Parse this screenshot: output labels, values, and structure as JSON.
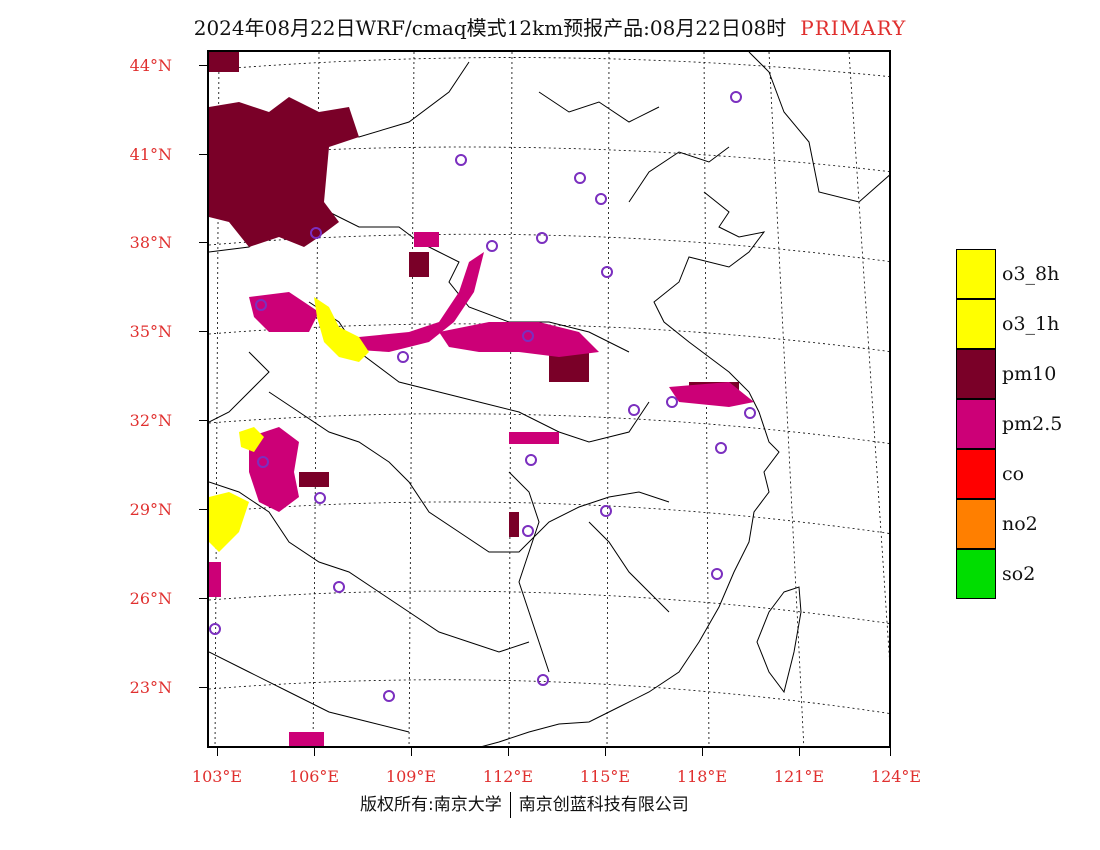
{
  "title": {
    "main": "2024年08月22日WRF/cmaq模式12km预报产品:08月22日08时",
    "tag": "PRIMARY"
  },
  "map": {
    "lat_labels": [
      "44°N",
      "41°N",
      "38°N",
      "35°N",
      "32°N",
      "29°N",
      "26°N",
      "23°N"
    ],
    "lon_labels": [
      "103°E",
      "106°E",
      "109°E",
      "112°E",
      "115°E",
      "118°E",
      "121°E",
      "124°E"
    ],
    "colors": {
      "o3_8h": "#ffff00",
      "o3_1h": "#ffff00",
      "pm10": "#7a0028",
      "pm25": "#cc0077",
      "co": "#ff0000",
      "no2": "#ff7f00",
      "so2": "#00dd00",
      "station": "#7b2fbf",
      "border": "#000000"
    }
  },
  "legend": [
    {
      "label": "o3_8h",
      "color": "#ffff00"
    },
    {
      "label": "o3_1h",
      "color": "#ffff00"
    },
    {
      "label": "pm10",
      "color": "#7a0028"
    },
    {
      "label": "pm2.5",
      "color": "#cc0077"
    },
    {
      "label": "co",
      "color": "#ff0000"
    },
    {
      "label": "no2",
      "color": "#ff7f00"
    },
    {
      "label": "so2",
      "color": "#00dd00"
    }
  ],
  "footer": {
    "left": "版权所有:南京大学",
    "right": "南京创蓝科技有限公司"
  }
}
